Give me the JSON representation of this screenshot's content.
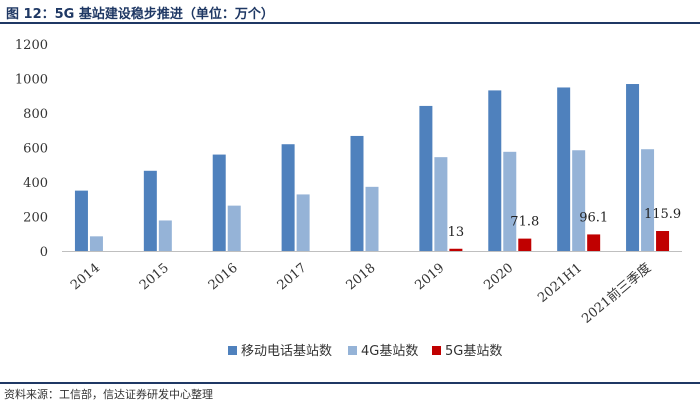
{
  "title": "图  12：5G 基站建设稳步推进（单位：万个）",
  "source": "资料来源：工信部，信达证券研发中心整理",
  "chart_data": {
    "type": "bar",
    "categories": [
      "2014",
      "2015",
      "2016",
      "2017",
      "2018",
      "2019",
      "2020",
      "2021H1",
      "2021前三季度"
    ],
    "ylim": [
      0,
      1200
    ],
    "yticks": [
      0,
      200,
      400,
      600,
      800,
      1000,
      1200
    ],
    "grid": false,
    "legend_position": "bottom",
    "series": [
      {
        "name": "移动电话基站数",
        "color": "#4f81bd",
        "values": [
          350,
          465,
          559,
          619,
          667,
          841,
          931,
          948,
          968
        ]
      },
      {
        "name": "4G基站数",
        "color": "#95b3d7",
        "values": [
          85,
          177,
          263,
          328,
          372,
          544,
          575,
          584,
          590
        ]
      },
      {
        "name": "5G基站数",
        "color": "#c00000",
        "values": [
          null,
          null,
          null,
          null,
          null,
          13,
          71.8,
          96.1,
          115.9
        ]
      }
    ],
    "data_labels": [
      {
        "category": "2019",
        "series": "5G基站数",
        "text": "13"
      },
      {
        "category": "2020",
        "series": "5G基站数",
        "text": "71.8"
      },
      {
        "category": "2021H1",
        "series": "5G基站数",
        "text": "96.1"
      },
      {
        "category": "2021前三季度",
        "series": "5G基站数",
        "text": "115.9"
      }
    ]
  }
}
